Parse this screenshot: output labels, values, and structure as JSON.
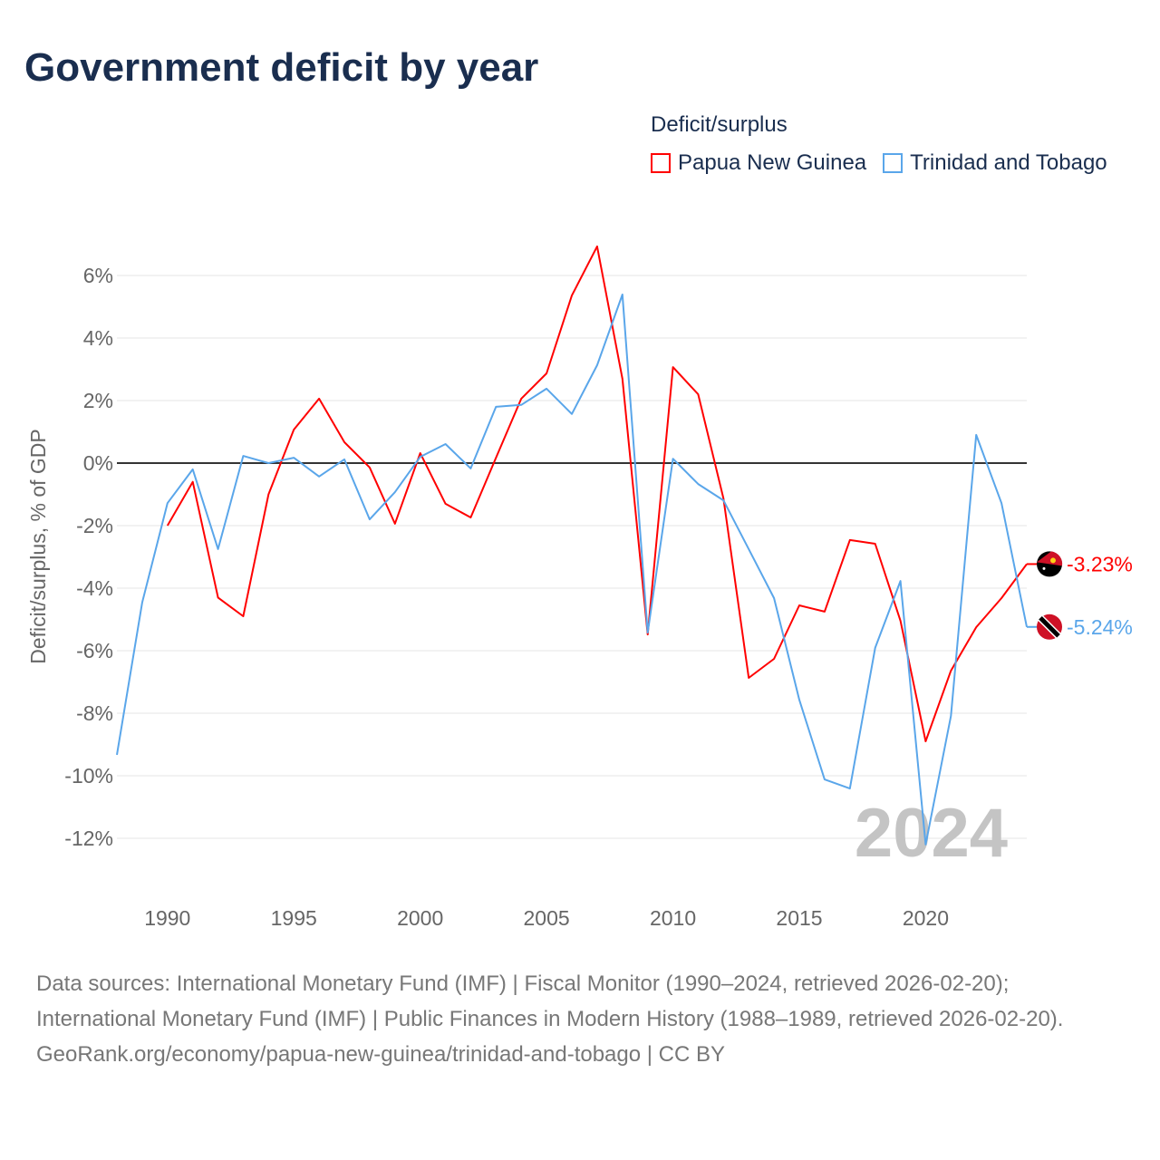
{
  "title": "Government deficit by year",
  "legend": {
    "title": "Deficit/surplus",
    "items": [
      {
        "name": "Papua New Guinea",
        "color": "#ff0000"
      },
      {
        "name": "Trinidad and Tobago",
        "color": "#5aa6ea"
      }
    ]
  },
  "footer": {
    "sources": "Data sources: International Monetary Fund (IMF) | Fiscal Monitor (1990–2024, retrieved 2026-02-20); International Monetary Fund (IMF) | Public Finances in Modern History (1988–1989, retrieved 2026-02-20).",
    "link": "GeoRank.org/economy/papua-new-guinea/trinidad-and-tobago | CC BY"
  },
  "chart_data": {
    "type": "line",
    "title": "Government deficit by year",
    "ylabel": "Deficit/surplus, % of GDP",
    "xlabel": "",
    "xlim": [
      1988,
      2024
    ],
    "ylim": [
      -13.5,
      7.5
    ],
    "xticks": [
      1990,
      1995,
      2000,
      2005,
      2010,
      2015,
      2020
    ],
    "yticks": [
      -12,
      -10,
      -8,
      -6,
      -4,
      -2,
      0,
      2,
      4,
      6
    ],
    "ytick_labels": [
      "-12%",
      "-10%",
      "-8%",
      "-6%",
      "-4%",
      "-2%",
      "0%",
      "2%",
      "4%",
      "6%"
    ],
    "year_watermark": "2024",
    "series": [
      {
        "name": "Papua New Guinea",
        "color": "#ff0000",
        "end_label": "-3.23%",
        "start_year": 1990,
        "values": [
          -2.0,
          -0.6,
          -4.3,
          -4.9,
          -1.0,
          1.07,
          2.06,
          0.67,
          -0.14,
          -1.94,
          0.32,
          -1.3,
          -1.74,
          0.17,
          2.06,
          2.87,
          5.36,
          6.93,
          2.7,
          -5.48,
          3.07,
          2.2,
          -1.13,
          -6.87,
          -6.26,
          -4.55,
          -4.75,
          -2.46,
          -2.58,
          -5.04,
          -8.9,
          -6.64,
          -5.25,
          -4.32,
          -3.23
        ]
      },
      {
        "name": "Trinidad and Tobago",
        "color": "#5aa6ea",
        "end_label": "-5.24%",
        "start_year": 1988,
        "values": [
          -9.33,
          -4.46,
          -1.28,
          -0.2,
          -2.75,
          0.23,
          0.0,
          0.17,
          -0.43,
          0.12,
          -1.8,
          -0.93,
          0.2,
          0.61,
          -0.17,
          1.8,
          1.86,
          2.38,
          1.57,
          3.13,
          5.39,
          -5.42,
          0.14,
          -0.67,
          -1.19,
          -2.75,
          -4.32,
          -7.57,
          -10.12,
          -10.41,
          -5.91,
          -3.77,
          -12.2,
          -8.09,
          0.9,
          -1.28,
          -5.24
        ]
      }
    ]
  }
}
